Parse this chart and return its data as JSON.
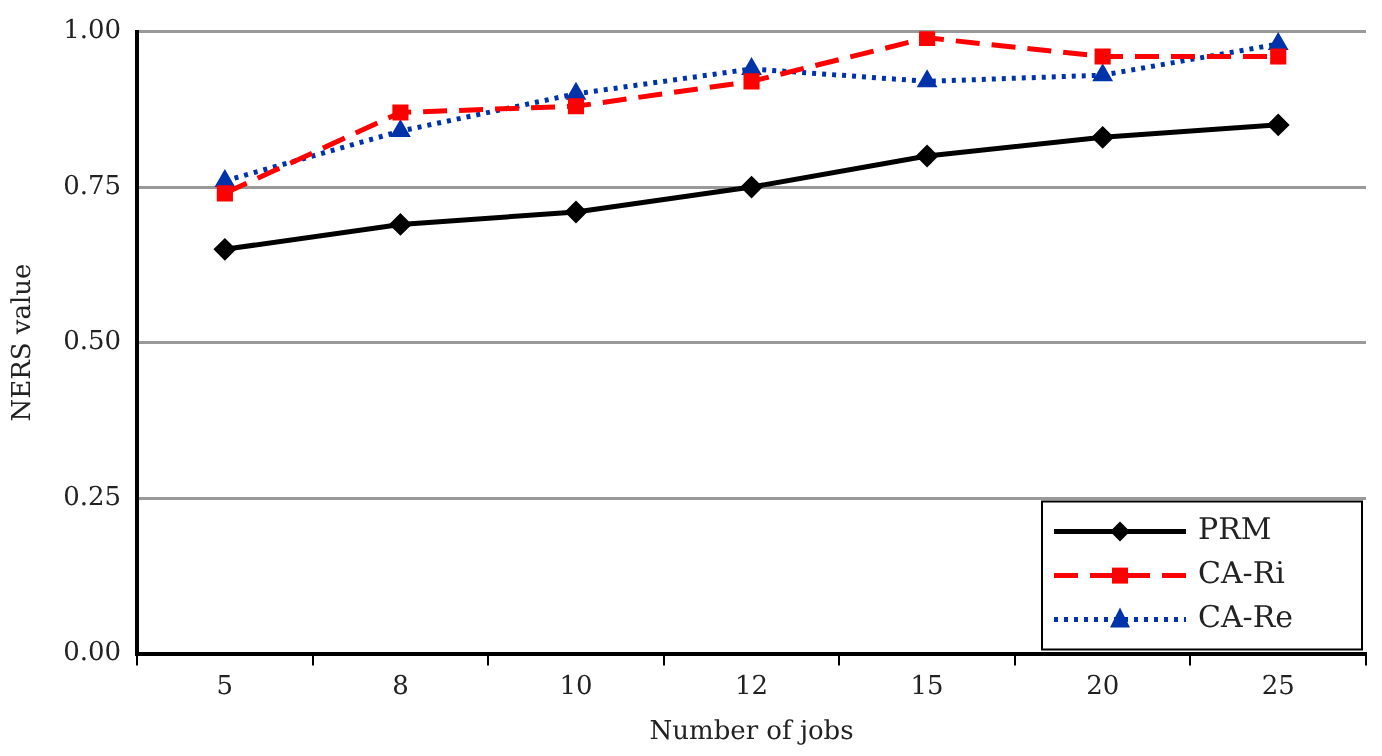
{
  "chart_data": {
    "type": "line",
    "xlabel": "Number of jobs",
    "ylabel": "NERS value",
    "categories": [
      "5",
      "8",
      "10",
      "12",
      "15",
      "20",
      "25"
    ],
    "ylim": [
      0,
      1
    ],
    "yticks": [
      {
        "value": 0,
        "label": "0.00"
      },
      {
        "value": 0.25,
        "label": "0.25"
      },
      {
        "value": 0.5,
        "label": "0.50"
      },
      {
        "value": 0.75,
        "label": "0.75"
      },
      {
        "value": 1,
        "label": "1.00"
      }
    ],
    "grid": "y",
    "legend": "bottom right",
    "series": [
      {
        "name": "PRM",
        "color": "#000000",
        "marker": "diamond",
        "line_style": "solid",
        "values": [
          0.65,
          0.69,
          0.71,
          0.75,
          0.8,
          0.83,
          0.85
        ]
      },
      {
        "name": "CA-Ri",
        "color": "#ff0000",
        "marker": "square",
        "line_style": "dashed",
        "values": [
          0.74,
          0.87,
          0.88,
          0.92,
          0.99,
          0.96,
          0.96
        ]
      },
      {
        "name": "CA-Re",
        "color": "#0033aa",
        "marker": "triangle",
        "line_style": "dotted",
        "values": [
          0.76,
          0.84,
          0.9,
          0.94,
          0.92,
          0.93,
          0.98
        ]
      }
    ]
  }
}
